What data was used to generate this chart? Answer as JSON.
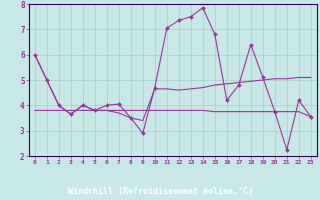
{
  "xlabel": "Windchill (Refroidissement éolien,°C)",
  "bg_color": "#c8e8e8",
  "plot_bg": "#c8e8e8",
  "line_color": "#993399",
  "axis_bar_color": "#330055",
  "xlim": [
    -0.5,
    23.5
  ],
  "ylim": [
    2,
    8
  ],
  "yticks": [
    2,
    3,
    4,
    5,
    6,
    7,
    8
  ],
  "xticks": [
    0,
    1,
    2,
    3,
    4,
    5,
    6,
    7,
    8,
    9,
    10,
    11,
    12,
    13,
    14,
    15,
    16,
    17,
    18,
    19,
    20,
    21,
    22,
    23
  ],
  "xtick_labels": [
    "0",
    "1",
    "2",
    "3",
    "4",
    "5",
    "6",
    "7",
    "8",
    "9",
    "10",
    "11",
    "12",
    "13",
    "14",
    "15",
    "16",
    "17",
    "18",
    "19",
    "20",
    "21",
    "22",
    "23"
  ],
  "series1": [
    6.0,
    5.0,
    4.0,
    3.65,
    4.0,
    3.8,
    4.0,
    4.05,
    3.5,
    2.9,
    4.7,
    7.05,
    7.35,
    7.5,
    7.85,
    6.8,
    4.2,
    4.8,
    6.4,
    5.1,
    3.75,
    2.25,
    4.2,
    3.55
  ],
  "series2": [
    6.0,
    5.0,
    4.0,
    3.65,
    4.0,
    3.8,
    3.8,
    3.7,
    3.5,
    3.4,
    4.65,
    4.65,
    4.6,
    4.65,
    4.7,
    4.8,
    4.85,
    4.9,
    4.95,
    5.0,
    5.05,
    5.05,
    5.1,
    5.1
  ],
  "series3": [
    3.8,
    3.8,
    3.8,
    3.8,
    3.8,
    3.8,
    3.8,
    3.8,
    3.8,
    3.8,
    3.8,
    3.8,
    3.8,
    3.8,
    3.8,
    3.75,
    3.75,
    3.75,
    3.75,
    3.75,
    3.75,
    3.75,
    3.75,
    3.55
  ],
  "grid_color": "#aacccc",
  "tick_color": "#993399",
  "label_color": "#993399"
}
